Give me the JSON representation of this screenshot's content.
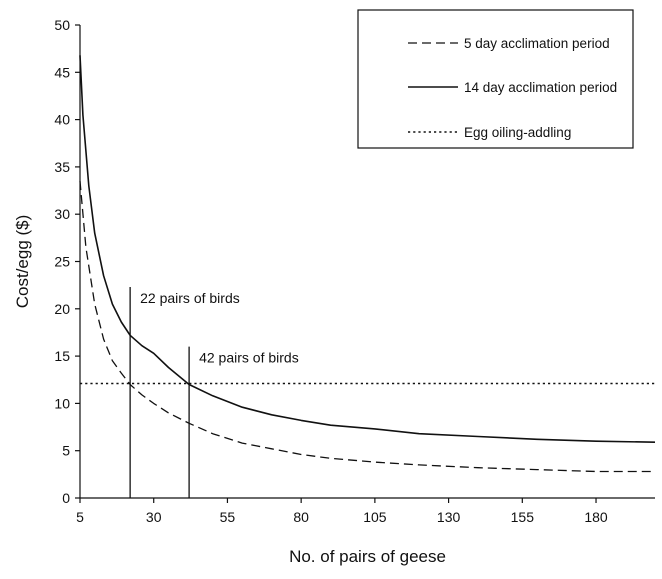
{
  "chart_data": {
    "type": "line",
    "title": "",
    "xlabel": "No. of pairs of geese",
    "ylabel": "Cost/egg ($)",
    "xlim": [
      5,
      200
    ],
    "ylim": [
      0,
      50
    ],
    "xticks": [
      5,
      30,
      55,
      80,
      105,
      130,
      155,
      180
    ],
    "yticks": [
      0,
      5,
      10,
      15,
      20,
      25,
      30,
      35,
      40,
      45,
      50
    ],
    "grid": false,
    "legend_position": "top-right",
    "series": [
      {
        "name": "5 day acclimation period",
        "style": "dashed",
        "color": "#111111",
        "x": [
          5,
          7,
          10,
          13,
          16,
          19,
          22,
          26,
          30,
          35,
          42,
          50,
          60,
          70,
          80,
          90,
          105,
          120,
          140,
          160,
          180,
          200
        ],
        "y": [
          33.5,
          26.5,
          20.5,
          16.8,
          14.5,
          13.2,
          12.0,
          10.9,
          10.0,
          9.0,
          7.9,
          6.8,
          5.8,
          5.2,
          4.6,
          4.2,
          3.8,
          3.5,
          3.2,
          3.0,
          2.8,
          2.8
        ]
      },
      {
        "name": "14 day acclimation period",
        "style": "solid",
        "color": "#111111",
        "x": [
          5,
          6,
          8,
          10,
          13,
          16,
          19,
          22,
          26,
          30,
          35,
          42,
          50,
          60,
          70,
          80,
          90,
          105,
          120,
          140,
          160,
          180,
          200
        ],
        "y": [
          46.8,
          40.5,
          33.0,
          28.0,
          23.5,
          20.5,
          18.6,
          17.2,
          16.1,
          15.3,
          13.8,
          12.0,
          10.8,
          9.6,
          8.8,
          8.2,
          7.7,
          7.3,
          6.8,
          6.5,
          6.2,
          6.0,
          5.9
        ]
      },
      {
        "name": "Egg oiling-addling",
        "style": "dotted",
        "color": "#111111",
        "x": [
          5,
          200
        ],
        "y": [
          12.1,
          12.1
        ]
      }
    ],
    "annotations": [
      {
        "label": "22 pairs of birds",
        "x": 22,
        "line_top": 22.3
      },
      {
        "label": "42 pairs of birds",
        "x": 42,
        "line_top": 16.0
      }
    ]
  }
}
